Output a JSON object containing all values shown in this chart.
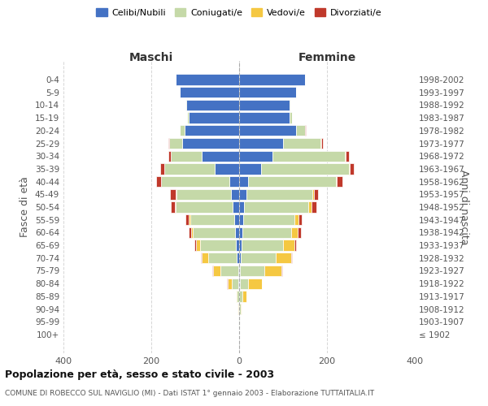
{
  "age_groups": [
    "100+",
    "95-99",
    "90-94",
    "85-89",
    "80-84",
    "75-79",
    "70-74",
    "65-69",
    "60-64",
    "55-59",
    "50-54",
    "45-49",
    "40-44",
    "35-39",
    "30-34",
    "25-29",
    "20-24",
    "15-19",
    "10-14",
    "5-9",
    "0-4"
  ],
  "birth_years": [
    "≤ 1902",
    "1903-1907",
    "1908-1912",
    "1913-1917",
    "1918-1922",
    "1923-1927",
    "1928-1932",
    "1933-1937",
    "1938-1942",
    "1943-1947",
    "1948-1952",
    "1953-1957",
    "1958-1962",
    "1963-1967",
    "1968-1972",
    "1973-1977",
    "1978-1982",
    "1983-1987",
    "1988-1992",
    "1993-1997",
    "1998-2002"
  ],
  "maschi": {
    "celibe": [
      0,
      0,
      0,
      0,
      1,
      2,
      5,
      8,
      10,
      11,
      15,
      18,
      22,
      55,
      85,
      130,
      125,
      115,
      120,
      135,
      145
    ],
    "coniugato": [
      0,
      1,
      2,
      5,
      15,
      40,
      65,
      80,
      95,
      100,
      130,
      125,
      155,
      115,
      70,
      30,
      10,
      3,
      2,
      0,
      0
    ],
    "vedovo": [
      0,
      0,
      1,
      3,
      10,
      18,
      15,
      10,
      5,
      3,
      2,
      2,
      1,
      1,
      1,
      0,
      0,
      0,
      0,
      0,
      0
    ],
    "divorziato": [
      0,
      0,
      0,
      0,
      1,
      1,
      2,
      3,
      5,
      8,
      8,
      12,
      10,
      8,
      5,
      2,
      1,
      0,
      0,
      0,
      0
    ]
  },
  "femmine": {
    "celibe": [
      0,
      0,
      0,
      0,
      1,
      2,
      3,
      5,
      8,
      10,
      12,
      16,
      20,
      50,
      75,
      100,
      130,
      115,
      115,
      130,
      150
    ],
    "coniugata": [
      0,
      1,
      3,
      8,
      20,
      55,
      80,
      95,
      110,
      115,
      145,
      150,
      200,
      200,
      165,
      85,
      20,
      5,
      2,
      0,
      0
    ],
    "vedova": [
      0,
      1,
      3,
      8,
      30,
      40,
      35,
      25,
      15,
      10,
      8,
      5,
      3,
      2,
      2,
      2,
      0,
      0,
      0,
      0,
      0
    ],
    "divorziata": [
      0,
      0,
      0,
      0,
      1,
      1,
      3,
      4,
      8,
      8,
      10,
      8,
      12,
      10,
      8,
      3,
      1,
      0,
      0,
      0,
      0
    ]
  },
  "colors": {
    "celibe": "#4472c4",
    "coniugato": "#c5d9a8",
    "vedovo": "#f5c842",
    "divorziato": "#c0392b"
  },
  "xlim": 400,
  "title": "Popolazione per età, sesso e stato civile - 2003",
  "subtitle": "COMUNE DI ROBECCO SUL NAVIGLIO (MI) - Dati ISTAT 1° gennaio 2003 - Elaborazione TUTTAITALIA.IT",
  "ylabel_left": "Fasce di età",
  "ylabel_right": "Anni di nascita",
  "xlabel_left": "Maschi",
  "xlabel_right": "Femmine",
  "background_color": "#ffffff",
  "grid_color": "#cccccc",
  "legend_labels": [
    "Celibi/Nubili",
    "Coniugati/e",
    "Vedovi/e",
    "Divorziati/e"
  ]
}
